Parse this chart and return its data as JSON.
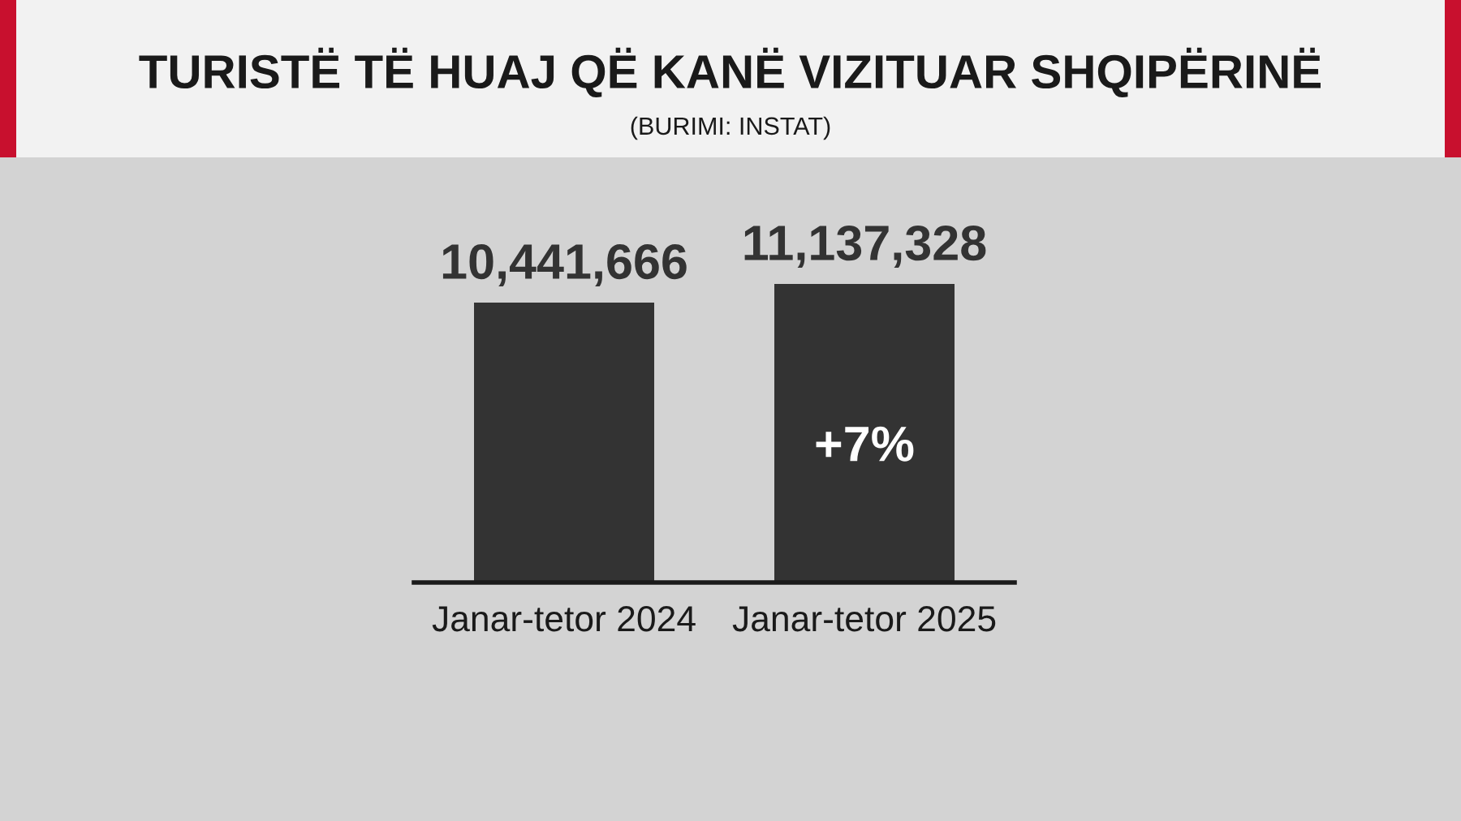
{
  "chart_data": {
    "type": "bar",
    "title": "TURISTË TË HUAJ QË KANË VIZITUAR SHQIPËRINË",
    "subtitle": "(BURIMI: INSTAT)",
    "categories": [
      "Janar-tetor 2024",
      "Janar-tetor 2025"
    ],
    "values": [
      10441666,
      11137328
    ],
    "value_labels": [
      "10,441,666",
      "11,137,328"
    ],
    "color": "#333333",
    "annotations": [
      "+7%"
    ],
    "grid": false,
    "legend": false,
    "tick_labels": "x"
  }
}
